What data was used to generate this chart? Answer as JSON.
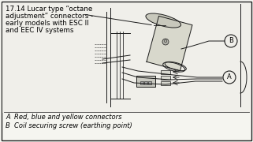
{
  "fig_width": 3.21,
  "fig_height": 1.8,
  "dpi": 100,
  "bg_color": "#f5f5f0",
  "border_color": "#222222",
  "title_line1": "17.14 Lucar type “octane",
  "title_line2": "adjustment” connectors -",
  "title_line3": "early models with ESC II",
  "title_line4": "and EEC IV systems",
  "title_fontsize": 6.3,
  "caption_A": "A  Red, blue and yellow connectors",
  "caption_B": "B  Coil securing screw (earthing point)",
  "caption_fontsize": 6.0,
  "label_A": "A",
  "label_B": "B"
}
